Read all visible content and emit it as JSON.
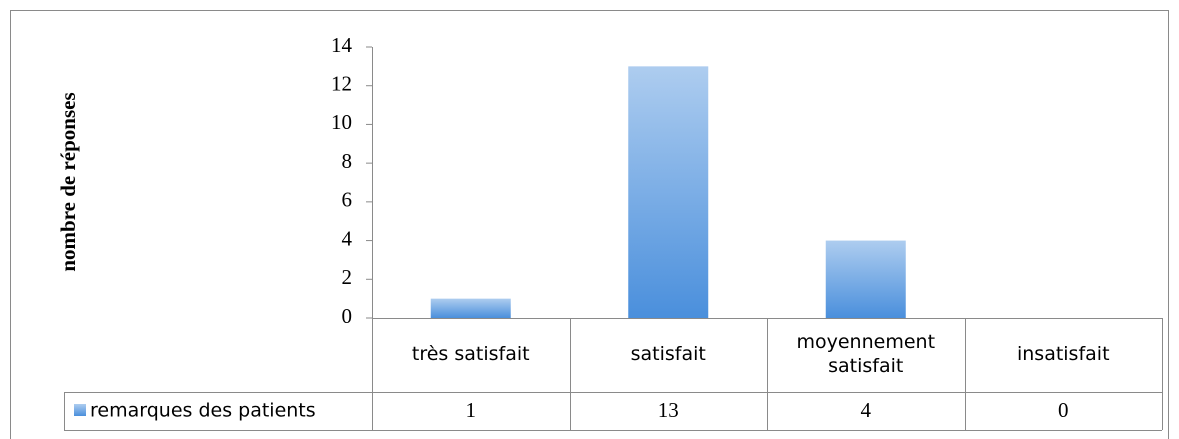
{
  "chart_data": {
    "type": "bar",
    "ylabel": "nombre de réponses",
    "categories": [
      "très satisfait",
      "satisfait",
      "moyennement satisfait",
      "insatisfait"
    ],
    "series": [
      {
        "name": "remarques des patients",
        "color": "#4a8fdc",
        "values": [
          1,
          13,
          4,
          0
        ]
      }
    ],
    "ylim": [
      0,
      14
    ],
    "yticks": [
      0,
      2,
      4,
      6,
      8,
      10,
      12,
      14
    ],
    "grid": false
  }
}
